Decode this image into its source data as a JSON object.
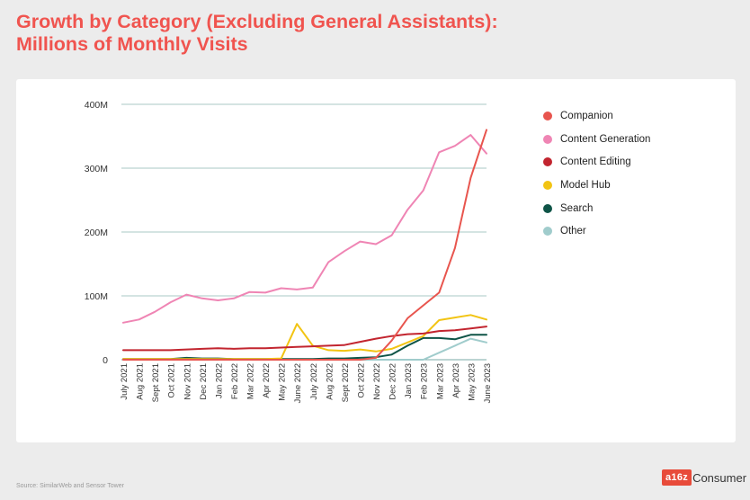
{
  "title_line1": "Growth by Category (Excluding General Assistants):",
  "title_line2": "Millions of Monthly Visits",
  "source": "Source: SimilarWeb and Sensor Tower",
  "brand": {
    "logo_text": "a16z",
    "name": "Consumer"
  },
  "chart_data": {
    "type": "line",
    "title": "Growth by Category (Excluding General Assistants): Millions of Monthly Visits",
    "xlabel": "",
    "ylabel": "",
    "ylim": [
      0,
      400
    ],
    "y_ticks": [
      0,
      100,
      200,
      300,
      400
    ],
    "y_tick_labels": [
      "0",
      "100M",
      "200M",
      "300M",
      "400M"
    ],
    "grid": true,
    "legend_position": "right",
    "categories": [
      "July 2021",
      "Aug 2021",
      "Sept 2021",
      "Oct 2021",
      "Nov 2021",
      "Dec 2021",
      "Jan 2022",
      "Feb 2022",
      "Mar 2022",
      "Apr 2022",
      "May 2022",
      "June 2022",
      "July 2022",
      "Aug 2022",
      "Sept 2022",
      "Oct 2022",
      "Nov 2022",
      "Dec 2022",
      "Jan 2023",
      "Feb 2023",
      "Mar 2023",
      "Apr 2023",
      "May 2023",
      "June 2023"
    ],
    "series": [
      {
        "name": "Companion",
        "color": "#e8554e",
        "values": [
          0,
          0,
          0,
          0,
          0,
          0,
          0,
          0,
          0,
          0,
          0,
          0,
          0,
          0,
          0,
          0,
          3,
          30,
          65,
          85,
          105,
          175,
          285,
          360
        ]
      },
      {
        "name": "Content Generation",
        "color": "#ef85b4",
        "values": [
          58,
          63,
          75,
          90,
          102,
          96,
          93,
          96,
          106,
          105,
          112,
          110,
          113,
          153,
          170,
          185,
          181,
          195,
          235,
          265,
          325,
          335,
          352,
          323
        ]
      },
      {
        "name": "Content Editing",
        "color": "#c2252f",
        "values": [
          15,
          15,
          15,
          15,
          16,
          17,
          18,
          17,
          18,
          18,
          19,
          20,
          21,
          22,
          23,
          28,
          33,
          37,
          40,
          41,
          45,
          46,
          49,
          52
        ]
      },
      {
        "name": "Model Hub",
        "color": "#f2c413",
        "values": [
          1,
          1,
          1,
          1,
          1,
          1,
          1,
          1,
          1,
          1,
          2,
          56,
          22,
          15,
          14,
          16,
          13,
          17,
          27,
          37,
          62,
          66,
          70,
          63
        ]
      },
      {
        "name": "Search",
        "color": "#0e5447",
        "values": [
          1,
          1,
          1,
          1,
          3,
          2,
          2,
          1,
          1,
          1,
          1,
          1,
          1,
          2,
          2,
          3,
          4,
          8,
          22,
          34,
          34,
          32,
          39,
          39
        ]
      },
      {
        "name": "Other",
        "color": "#a0cccc",
        "values": [
          0,
          0,
          0,
          0,
          0,
          0,
          0,
          0,
          0,
          0,
          0,
          0,
          0,
          0,
          0,
          0,
          0,
          0,
          0,
          0,
          11,
          22,
          33,
          27
        ]
      }
    ]
  }
}
